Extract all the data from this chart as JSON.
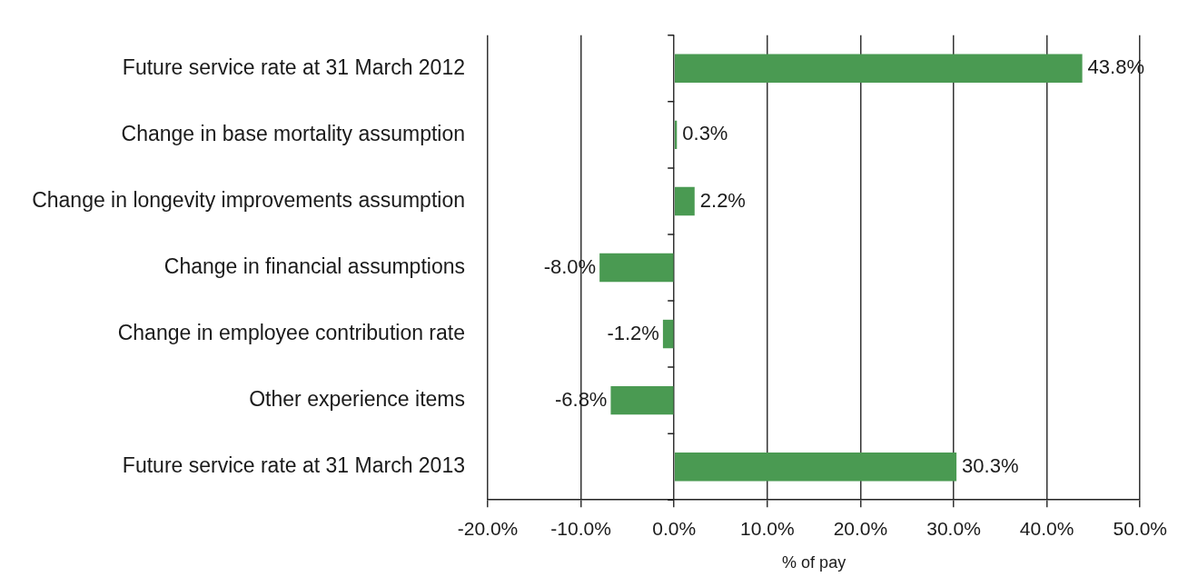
{
  "chart_data": {
    "type": "bar",
    "orientation": "horizontal",
    "categories": [
      "Future service rate at 31 March 2012",
      "Change in base mortality assumption",
      "Change in longevity improvements assumption",
      "Change in financial assumptions",
      "Change in employee contribution rate",
      "Other experience items",
      "Future service rate at 31 March 2013"
    ],
    "values": [
      43.8,
      0.3,
      2.2,
      -8.0,
      -1.2,
      -6.8,
      30.3
    ],
    "color": "#4a9a52",
    "value_labels": [
      "43.8%",
      "0.3%",
      "2.2%",
      "-8.0%",
      "-1.2%",
      "-6.8%",
      "30.3%"
    ],
    "xlim": [
      -20,
      50
    ],
    "xticks": [
      {
        "value": -20,
        "label": "-20.0%"
      },
      {
        "value": -10,
        "label": "-10.0%"
      },
      {
        "value": 0,
        "label": "0.0%"
      },
      {
        "value": 10,
        "label": "10.0%"
      },
      {
        "value": 20,
        "label": "20.0%"
      },
      {
        "value": 30,
        "label": "30.0%"
      },
      {
        "value": 40,
        "label": "40.0%"
      },
      {
        "value": 50,
        "label": "50.0%"
      }
    ],
    "xlabel": "% of pay",
    "grid": "x"
  }
}
